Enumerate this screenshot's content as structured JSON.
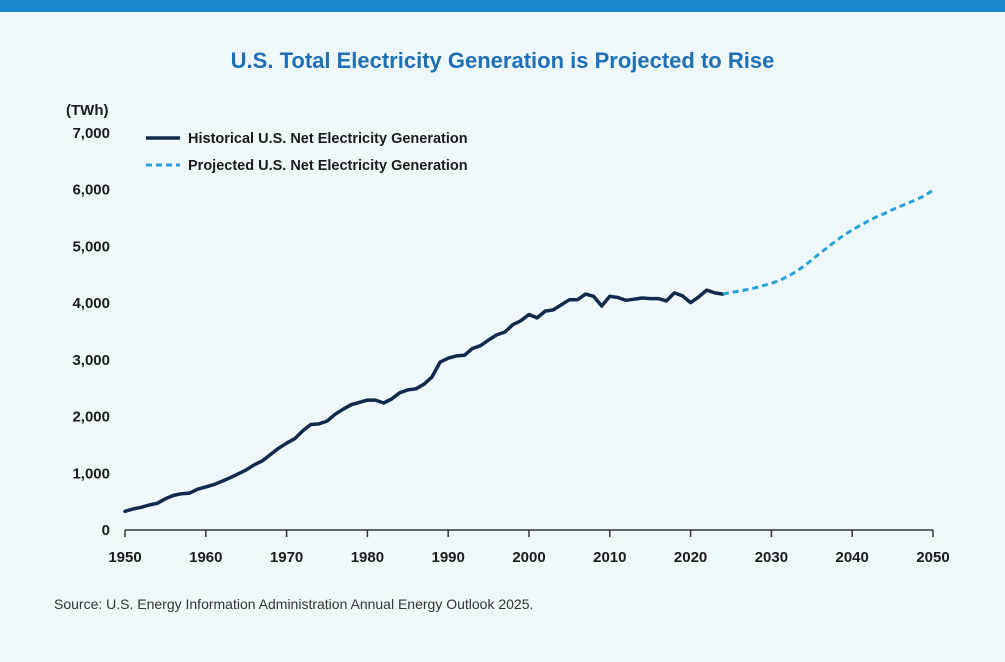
{
  "colors": {
    "band": "#1a86c9",
    "title": "#1f6fb5",
    "historical": "#0f2a4d",
    "projected": "#2aa0d8",
    "background": "#eef8fb"
  },
  "chart_data": {
    "type": "line",
    "title": "U.S. Total Electricity Generation is Projected to Rise",
    "ylabel": "(TWh)",
    "xlabel": "",
    "xlim": [
      1950,
      2050
    ],
    "ylim": [
      0,
      7000
    ],
    "x_ticks": [
      "1950",
      "1960",
      "1970",
      "1980",
      "1990",
      "2000",
      "2010",
      "2020",
      "2030",
      "2040",
      "2050"
    ],
    "y_ticks": [
      "0",
      "1,000",
      "2,000",
      "3,000",
      "4,000",
      "5,000",
      "6,000",
      "7,000"
    ],
    "legend_position": "top-left",
    "series": [
      {
        "name": "Historical U.S. Net Electricity Generation",
        "style": "solid",
        "x": [
          1950,
          1951,
          1952,
          1953,
          1954,
          1955,
          1956,
          1957,
          1958,
          1959,
          1960,
          1961,
          1962,
          1963,
          1964,
          1965,
          1966,
          1967,
          1968,
          1969,
          1970,
          1971,
          1972,
          1973,
          1974,
          1975,
          1976,
          1977,
          1978,
          1979,
          1980,
          1981,
          1982,
          1983,
          1984,
          1985,
          1986,
          1987,
          1988,
          1989,
          1990,
          1991,
          1992,
          1993,
          1994,
          1995,
          1996,
          1997,
          1998,
          1999,
          2000,
          2001,
          2002,
          2003,
          2004,
          2005,
          2006,
          2007,
          2008,
          2009,
          2010,
          2011,
          2012,
          2013,
          2014,
          2015,
          2016,
          2017,
          2018,
          2019,
          2020,
          2021,
          2022,
          2023,
          2024
        ],
        "values": [
          330,
          370,
          400,
          440,
          470,
          550,
          610,
          640,
          650,
          720,
          760,
          800,
          860,
          920,
          990,
          1060,
          1150,
          1220,
          1330,
          1440,
          1530,
          1610,
          1750,
          1860,
          1870,
          1920,
          2040,
          2130,
          2210,
          2250,
          2290,
          2290,
          2240,
          2310,
          2420,
          2470,
          2490,
          2570,
          2700,
          2960,
          3030,
          3070,
          3080,
          3200,
          3250,
          3350,
          3440,
          3490,
          3620,
          3690,
          3800,
          3740,
          3860,
          3880,
          3970,
          4060,
          4060,
          4160,
          4120,
          3950,
          4120,
          4100,
          4050,
          4070,
          4090,
          4080,
          4080,
          4040,
          4180,
          4130,
          4010,
          4110,
          4230,
          4180,
          4160
        ]
      },
      {
        "name": "Projected U.S. Net Electricity Generation",
        "style": "dashed",
        "x": [
          2024,
          2025,
          2026,
          2027,
          2028,
          2029,
          2030,
          2031,
          2032,
          2033,
          2034,
          2035,
          2036,
          2037,
          2038,
          2039,
          2040,
          2041,
          2042,
          2043,
          2044,
          2045,
          2046,
          2047,
          2048,
          2049,
          2050
        ],
        "values": [
          4160,
          4190,
          4210,
          4240,
          4270,
          4310,
          4350,
          4400,
          4470,
          4550,
          4650,
          4760,
          4880,
          4990,
          5100,
          5200,
          5290,
          5370,
          5450,
          5520,
          5580,
          5650,
          5710,
          5770,
          5830,
          5900,
          5990
        ]
      }
    ]
  },
  "source": "Source: U.S. Energy Information Administration Annual Energy Outlook 2025."
}
